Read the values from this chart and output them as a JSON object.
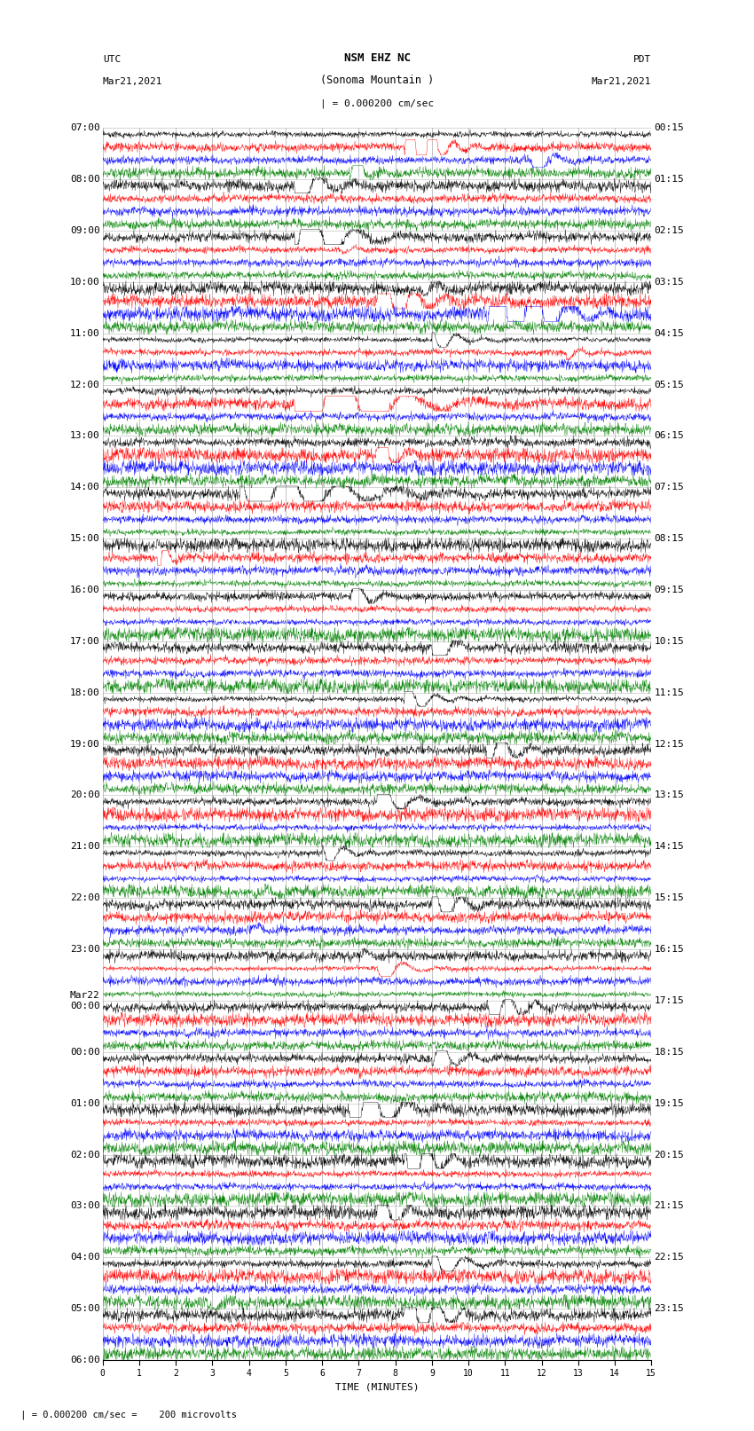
{
  "title_line1": "NSM EHZ NC",
  "title_line2": "(Sonoma Mountain )",
  "title_line3": "| = 0.000200 cm/sec",
  "left_label_top": "UTC",
  "left_label_date": "Mar21,2021",
  "right_label_top": "PDT",
  "right_label_date": "Mar21,2021",
  "xlabel": "TIME (MINUTES)",
  "bottom_note": "= 0.000200 cm/sec =    200 microvolts",
  "utc_hour_labels": [
    "07:00",
    "08:00",
    "09:00",
    "10:00",
    "11:00",
    "12:00",
    "13:00",
    "14:00",
    "15:00",
    "16:00",
    "17:00",
    "18:00",
    "19:00",
    "20:00",
    "21:00",
    "22:00",
    "23:00",
    "Mar22",
    "00:00",
    "01:00",
    "02:00",
    "03:00",
    "04:00",
    "05:00",
    "06:00"
  ],
  "pdt_hour_labels": [
    "00:15",
    "01:15",
    "02:15",
    "03:15",
    "04:15",
    "05:15",
    "06:15",
    "07:15",
    "08:15",
    "09:15",
    "10:15",
    "11:15",
    "12:15",
    "13:15",
    "14:15",
    "15:15",
    "16:15",
    "17:15",
    "18:15",
    "19:15",
    "20:15",
    "21:15",
    "22:15",
    "23:15"
  ],
  "colors": [
    "black",
    "red",
    "blue",
    "green"
  ],
  "n_hours": 24,
  "traces_per_hour": 4,
  "x_min": 0,
  "x_max": 15,
  "background_color": "white",
  "grid_color": "#888888",
  "title_fontsize": 9,
  "label_fontsize": 8,
  "tick_fontsize": 8,
  "amplitude_scale": 0.28,
  "seed": 42
}
